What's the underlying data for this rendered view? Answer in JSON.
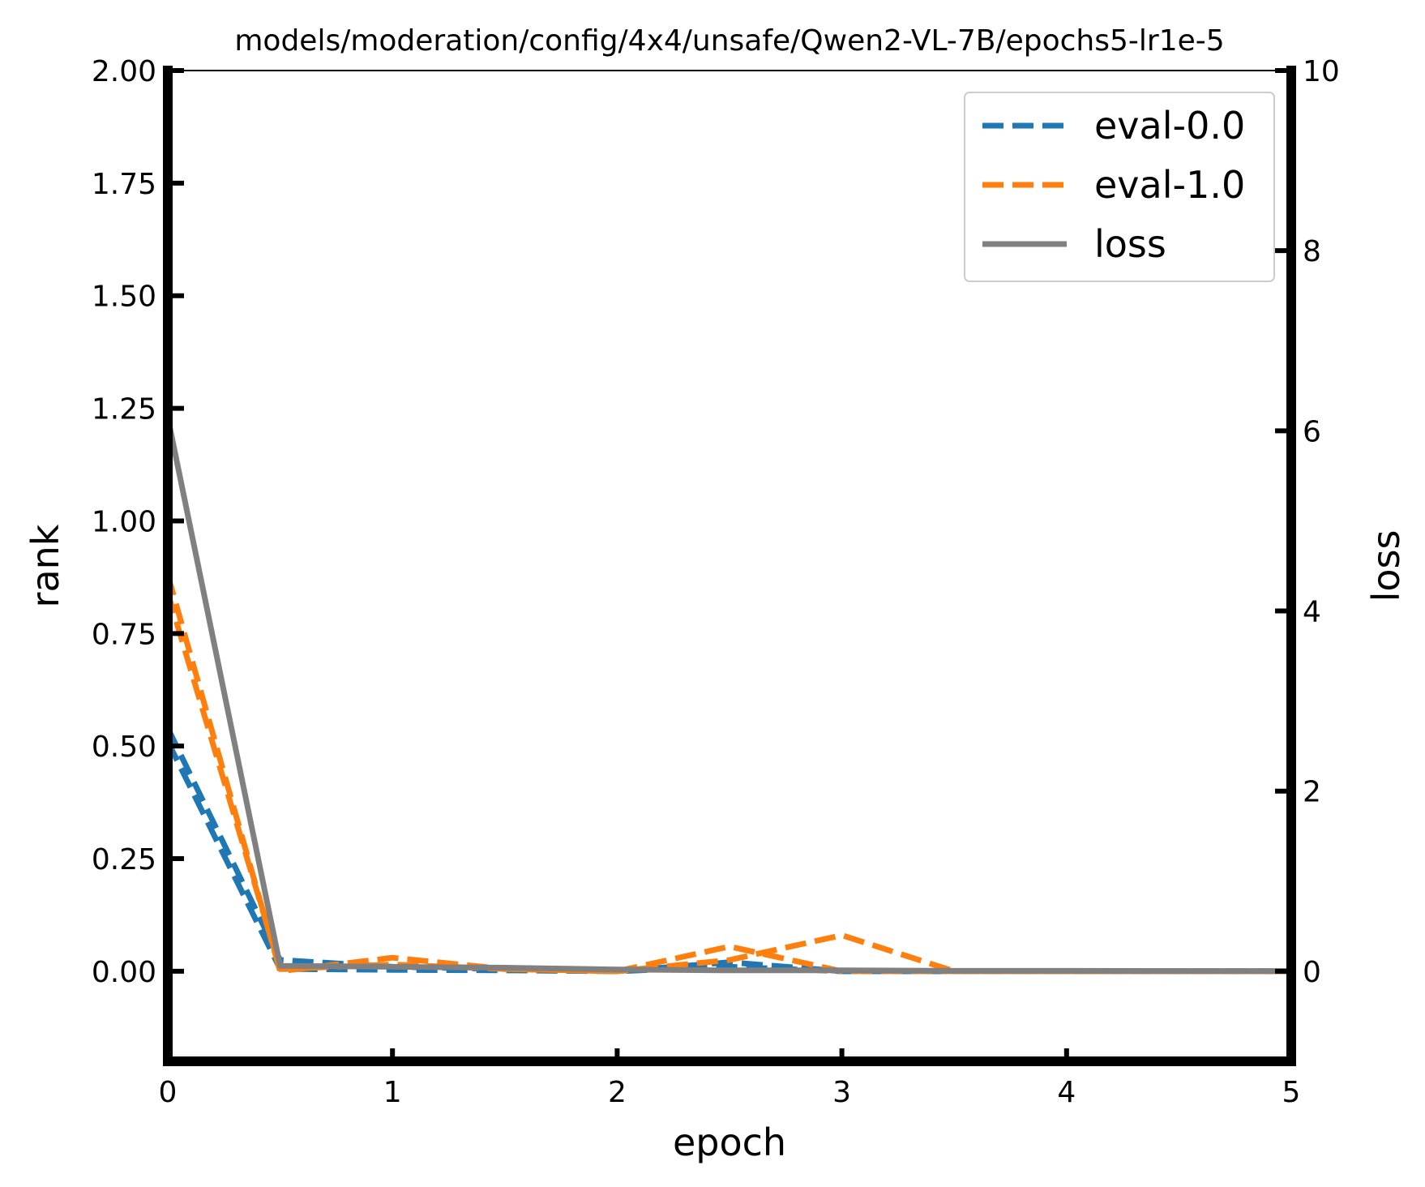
{
  "chart_data": {
    "type": "line",
    "title": "models/moderation/config/4x4/unsafe/Qwen2-VL-7B/epochs5-lr1e-5",
    "xlabel": "epoch",
    "ylabel": "rank",
    "y2label": "loss",
    "xlim": [
      0,
      5
    ],
    "ylim": [
      -0.2,
      2.0
    ],
    "y2lim": [
      -1,
      10
    ],
    "xticks": [
      0,
      1,
      2,
      3,
      4,
      5
    ],
    "xtick_labels": [
      "0",
      "1",
      "2",
      "3",
      "4",
      "5"
    ],
    "yticks": [
      0.0,
      0.25,
      0.5,
      0.75,
      1.0,
      1.25,
      1.5,
      1.75,
      2.0
    ],
    "ytick_labels": [
      "0.00",
      "0.25",
      "0.50",
      "0.75",
      "1.00",
      "1.25",
      "1.50",
      "1.75",
      "2.00"
    ],
    "y2ticks": [
      0,
      2,
      4,
      6,
      8,
      10
    ],
    "y2tick_labels": [
      "0",
      "2",
      "4",
      "6",
      "8",
      "10"
    ],
    "legend_position": "top-right",
    "series": [
      {
        "name": "eval-0.0",
        "axis": "left",
        "style": "dashed",
        "color": "#1f77b4",
        "variants": [
          {
            "x": [
              0,
              0.5,
              1.0,
              1.5,
              2.0,
              2.5,
              3.0,
              3.5,
              4.0,
              4.5,
              5.0
            ],
            "y": [
              0.54,
              0.025,
              0.01,
              0.005,
              0.0,
              0.02,
              0.0,
              0.0,
              0.0,
              0.0,
              0.0
            ]
          },
          {
            "x": [
              0,
              0.5,
              1.0,
              1.5,
              2.0,
              2.5,
              3.0,
              3.5,
              4.0,
              4.5,
              5.0
            ],
            "y": [
              0.51,
              0.005,
              0.003,
              0.002,
              0.0,
              0.01,
              0.0,
              0.0,
              0.0,
              0.0,
              0.0
            ]
          }
        ]
      },
      {
        "name": "eval-1.0",
        "axis": "left",
        "style": "dashed",
        "color": "#ff7f0e",
        "variants": [
          {
            "x": [
              0,
              0.5,
              1.0,
              1.5,
              2.0,
              2.5,
              3.0,
              3.5,
              4.0,
              4.5,
              5.0
            ],
            "y": [
              0.88,
              0.0,
              0.03,
              0.005,
              0.0,
              0.055,
              0.0,
              0.0,
              0.0,
              0.0,
              0.0
            ]
          },
          {
            "x": [
              0,
              0.5,
              1.0,
              1.5,
              2.0,
              2.5,
              3.0,
              3.5,
              4.0,
              4.5,
              5.0
            ],
            "y": [
              0.84,
              0.005,
              0.015,
              0.005,
              0.0,
              0.025,
              0.08,
              0.0,
              0.0,
              0.0,
              0.0
            ]
          }
        ]
      },
      {
        "name": "loss",
        "axis": "right",
        "style": "solid",
        "color": "#808080",
        "variants": [
          {
            "x": [
              0,
              0.5,
              1.0,
              1.5,
              2.0,
              2.5,
              3.0,
              3.5,
              4.0,
              4.5,
              5.0
            ],
            "y": [
              6.15,
              0.06,
              0.05,
              0.04,
              0.02,
              0.01,
              0.01,
              0.005,
              0.005,
              0.003,
              0.002
            ]
          }
        ]
      }
    ]
  }
}
